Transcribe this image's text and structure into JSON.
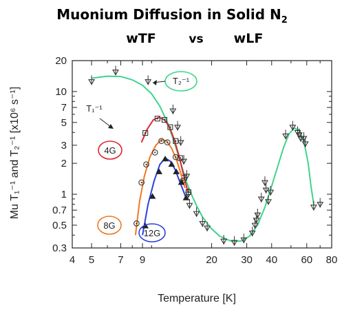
{
  "chart_data": {
    "type": "scatter",
    "title": "Muonium Diffusion in Solid N",
    "title_sub": "2",
    "subtitle": [
      "wTF",
      "vs",
      "wLF"
    ],
    "xlabel": "Temperature [K]",
    "ylabel": "Mu T₁⁻¹ and T₂⁻¹ [x10⁶ s⁻¹]",
    "xscale": "log",
    "yscale": "log",
    "xlim": [
      4,
      80
    ],
    "ylim": [
      0.3,
      20
    ],
    "xticks": [
      4,
      5,
      6,
      7,
      8,
      9,
      10,
      20,
      30,
      40,
      50,
      60,
      70,
      80
    ],
    "xtick_labels": [
      {
        "v": 4,
        "t": "4"
      },
      {
        "v": 5,
        "t": "5"
      },
      {
        "v": 7,
        "t": "7"
      },
      {
        "v": 9,
        "t": "9"
      },
      {
        "v": 20,
        "t": "20"
      },
      {
        "v": 30,
        "t": "30"
      },
      {
        "v": 40,
        "t": "40"
      },
      {
        "v": 60,
        "t": "60"
      },
      {
        "v": 80,
        "t": "80"
      }
    ],
    "yticks": [
      0.3,
      0.4,
      0.5,
      0.6,
      0.7,
      0.8,
      0.9,
      1,
      2,
      3,
      4,
      5,
      6,
      7,
      8,
      9,
      10,
      20
    ],
    "ytick_labels": [
      {
        "v": 0.3,
        "t": "0.3"
      },
      {
        "v": 0.5,
        "t": "0.5"
      },
      {
        "v": 0.7,
        "t": "0.7"
      },
      {
        "v": 1,
        "t": "1"
      },
      {
        "v": 2,
        "t": "2"
      },
      {
        "v": 3,
        "t": "3"
      },
      {
        "v": 5,
        "t": "5"
      },
      {
        "v": 7,
        "t": "7"
      },
      {
        "v": 10,
        "t": "10"
      },
      {
        "v": 20,
        "t": "20"
      }
    ],
    "series": [
      {
        "name": "T2^-1",
        "color": "#3fd48a",
        "marker": "triangle-down-open",
        "points": [
          [
            5,
            12.5
          ],
          [
            6.6,
            15.5
          ],
          [
            9.6,
            12.5
          ],
          [
            12.8,
            6.5
          ],
          [
            13.5,
            4.5
          ],
          [
            14,
            3.2
          ],
          [
            14.5,
            2.1
          ],
          [
            15,
            1.5
          ],
          [
            15.3,
            1.0
          ],
          [
            15.5,
            0.78
          ],
          [
            16.8,
            0.65
          ],
          [
            18,
            0.52
          ],
          [
            19,
            0.47
          ],
          [
            23,
            0.35
          ],
          [
            26,
            0.34
          ],
          [
            29,
            0.36
          ],
          [
            32,
            0.42
          ],
          [
            33,
            0.5
          ],
          [
            33.5,
            0.56
          ],
          [
            34,
            0.63
          ],
          [
            35.5,
            0.9
          ],
          [
            37,
            1.3
          ],
          [
            37.5,
            1.1
          ],
          [
            38.5,
            0.85
          ],
          [
            39.5,
            1.05
          ],
          [
            47,
            3.7
          ],
          [
            51,
            4.5
          ],
          [
            54,
            4.0
          ],
          [
            55,
            3.8
          ],
          [
            56,
            3.5
          ],
          [
            58,
            3.5
          ],
          [
            59,
            3.1
          ],
          [
            65,
            0.75
          ],
          [
            70,
            0.8
          ]
        ],
        "fit": [
          [
            5,
            13.5
          ],
          [
            6,
            14.1
          ],
          [
            7,
            14.0
          ],
          [
            8,
            13.0
          ],
          [
            9,
            11.5
          ],
          [
            10,
            9.5
          ],
          [
            11,
            7.2
          ],
          [
            12,
            5.0
          ],
          [
            13,
            3.2
          ],
          [
            14,
            2.0
          ],
          [
            15,
            1.3
          ],
          [
            16,
            0.95
          ],
          [
            17,
            0.74
          ],
          [
            18,
            0.6
          ],
          [
            20,
            0.46
          ],
          [
            22,
            0.39
          ],
          [
            25,
            0.35
          ],
          [
            28,
            0.35
          ],
          [
            31,
            0.39
          ],
          [
            34,
            0.5
          ],
          [
            37,
            0.75
          ],
          [
            40,
            1.2
          ],
          [
            43,
            1.9
          ],
          [
            46,
            2.9
          ],
          [
            49,
            3.9
          ],
          [
            52,
            4.4
          ],
          [
            55,
            4.2
          ],
          [
            58,
            3.3
          ],
          [
            61,
            2.0
          ],
          [
            63,
            1.2
          ],
          [
            65,
            0.8
          ]
        ]
      },
      {
        "name": "4G",
        "color": "#e0252f",
        "marker": "square-dot",
        "points": [
          [
            9.3,
            3.95
          ],
          [
            10.7,
            5.45
          ],
          [
            11.6,
            5.3
          ],
          [
            12.4,
            4.5
          ],
          [
            13.2,
            3.3
          ],
          [
            13.9,
            2.25
          ],
          [
            14.6,
            1.45
          ],
          [
            15.3,
            1.05
          ]
        ],
        "fit": [
          [
            8.9,
            3.2
          ],
          [
            9.5,
            4.3
          ],
          [
            10.2,
            5.3
          ],
          [
            10.9,
            5.6
          ],
          [
            11.6,
            5.3
          ],
          [
            12.3,
            4.5
          ],
          [
            13.0,
            3.4
          ],
          [
            13.7,
            2.4
          ],
          [
            14.4,
            1.6
          ],
          [
            15.2,
            1.05
          ]
        ]
      },
      {
        "name": "8G",
        "color": "#f07820",
        "marker": "circle-open",
        "points": [
          [
            8.4,
            0.52
          ],
          [
            8.9,
            1.3
          ],
          [
            9.4,
            1.95
          ],
          [
            10.4,
            2.55
          ],
          [
            11.2,
            3.3
          ],
          [
            12.0,
            3.2
          ],
          [
            13.2,
            2.3
          ],
          [
            14.3,
            1.35
          ]
        ],
        "fit": [
          [
            8.3,
            0.4
          ],
          [
            8.7,
            0.85
          ],
          [
            9.2,
            1.5
          ],
          [
            9.8,
            2.3
          ],
          [
            10.5,
            3.0
          ],
          [
            11.2,
            3.4
          ],
          [
            11.9,
            3.3
          ],
          [
            12.6,
            2.8
          ],
          [
            13.3,
            2.2
          ],
          [
            14.0,
            1.6
          ],
          [
            14.7,
            1.15
          ]
        ]
      },
      {
        "name": "12G",
        "color": "#2a3fe0",
        "marker": "triangle-up-filled",
        "points": [
          [
            9.3,
            0.49
          ],
          [
            10.1,
            0.95
          ],
          [
            10.9,
            1.65
          ],
          [
            11.7,
            2.2
          ],
          [
            12.6,
            1.95
          ],
          [
            13.3,
            1.65
          ],
          [
            14.1,
            1.3
          ],
          [
            14.9,
            0.92
          ]
        ],
        "fit": [
          [
            9.0,
            0.4
          ],
          [
            9.6,
            0.8
          ],
          [
            10.3,
            1.35
          ],
          [
            11.0,
            1.95
          ],
          [
            11.7,
            2.25
          ],
          [
            12.4,
            2.1
          ],
          [
            13.1,
            1.75
          ],
          [
            13.8,
            1.35
          ],
          [
            14.5,
            1.05
          ],
          [
            15.0,
            0.88
          ]
        ]
      }
    ],
    "annotations": [
      {
        "text": "T₂⁻¹",
        "color": "#3fd48a"
      },
      {
        "text": "T₁⁻¹"
      },
      {
        "text": "4G",
        "color": "#e0252f"
      },
      {
        "text": "8G",
        "color": "#f07820"
      },
      {
        "text": "12G",
        "color": "#2a3fe0"
      }
    ],
    "grid": false,
    "legend": "none"
  }
}
